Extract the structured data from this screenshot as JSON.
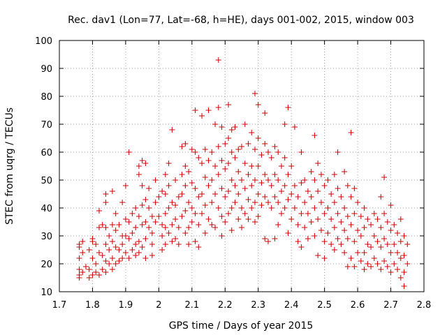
{
  "chart_data": {
    "type": "scatter",
    "title": "Rec. dav1 (Lon=77, Lat=-68, h=HE), days 001-002, 2015, window 003",
    "xlabel": "GPS time / Days of year 2015",
    "ylabel": "STEC from uqrg / TECUs",
    "xlim": [
      1.7,
      2.8
    ],
    "ylim": [
      10,
      100
    ],
    "x_ticks": [
      "1.7",
      "1.8",
      "1.9",
      "2",
      "2.1",
      "2.2",
      "2.3",
      "2.4",
      "2.5",
      "2.6",
      "2.7",
      "2.8"
    ],
    "y_ticks": [
      "10",
      "20",
      "30",
      "40",
      "50",
      "60",
      "70",
      "80",
      "90",
      "100"
    ],
    "grid": true,
    "marker": "+",
    "color": "#cc0000",
    "points": [
      [
        1.76,
        27
      ],
      [
        1.76,
        26
      ],
      [
        1.76,
        22
      ],
      [
        1.76,
        18
      ],
      [
        1.76,
        16
      ],
      [
        1.76,
        15
      ],
      [
        1.77,
        28
      ],
      [
        1.77,
        24
      ],
      [
        1.77,
        17
      ],
      [
        1.78,
        19
      ],
      [
        1.79,
        25
      ],
      [
        1.79,
        18
      ],
      [
        1.79,
        15
      ],
      [
        1.8,
        29
      ],
      [
        1.8,
        28
      ],
      [
        1.8,
        22
      ],
      [
        1.8,
        16
      ],
      [
        1.81,
        27
      ],
      [
        1.81,
        20
      ],
      [
        1.81,
        17
      ],
      [
        1.82,
        39
      ],
      [
        1.82,
        33
      ],
      [
        1.82,
        24
      ],
      [
        1.82,
        16
      ],
      [
        1.83,
        34
      ],
      [
        1.83,
        23
      ],
      [
        1.83,
        18
      ],
      [
        1.84,
        45
      ],
      [
        1.84,
        42
      ],
      [
        1.84,
        33
      ],
      [
        1.84,
        27
      ],
      [
        1.84,
        21
      ],
      [
        1.84,
        17
      ],
      [
        1.85,
        30
      ],
      [
        1.85,
        25
      ],
      [
        1.85,
        20
      ],
      [
        1.86,
        46
      ],
      [
        1.86,
        34
      ],
      [
        1.86,
        28
      ],
      [
        1.86,
        22
      ],
      [
        1.86,
        18
      ],
      [
        1.87,
        38
      ],
      [
        1.87,
        32
      ],
      [
        1.87,
        26
      ],
      [
        1.87,
        20
      ],
      [
        1.88,
        34
      ],
      [
        1.88,
        25
      ],
      [
        1.88,
        21
      ],
      [
        1.89,
        42
      ],
      [
        1.89,
        30
      ],
      [
        1.89,
        27
      ],
      [
        1.89,
        22
      ],
      [
        1.9,
        48
      ],
      [
        1.9,
        36
      ],
      [
        1.9,
        30
      ],
      [
        1.9,
        24
      ],
      [
        1.91,
        60
      ],
      [
        1.91,
        35
      ],
      [
        1.91,
        29
      ],
      [
        1.91,
        22
      ],
      [
        1.92,
        38
      ],
      [
        1.92,
        31
      ],
      [
        1.92,
        25
      ],
      [
        1.93,
        40
      ],
      [
        1.93,
        33
      ],
      [
        1.93,
        27
      ],
      [
        1.93,
        23
      ],
      [
        1.94,
        55
      ],
      [
        1.94,
        52
      ],
      [
        1.94,
        37
      ],
      [
        1.94,
        28
      ],
      [
        1.94,
        24
      ],
      [
        1.95,
        57
      ],
      [
        1.95,
        48
      ],
      [
        1.95,
        41
      ],
      [
        1.95,
        34
      ],
      [
        1.95,
        26
      ],
      [
        1.96,
        56
      ],
      [
        1.96,
        43
      ],
      [
        1.96,
        35
      ],
      [
        1.96,
        29
      ],
      [
        1.96,
        22
      ],
      [
        1.97,
        47
      ],
      [
        1.97,
        40
      ],
      [
        1.97,
        33
      ],
      [
        1.98,
        37
      ],
      [
        1.98,
        31
      ],
      [
        1.98,
        27
      ],
      [
        1.98,
        23
      ],
      [
        1.99,
        50
      ],
      [
        1.99,
        42
      ],
      [
        1.99,
        35
      ],
      [
        2.0,
        44
      ],
      [
        2.0,
        37
      ],
      [
        2.01,
        46
      ],
      [
        2.01,
        34
      ],
      [
        2.01,
        30
      ],
      [
        2.01,
        25
      ],
      [
        2.02,
        52
      ],
      [
        2.02,
        45
      ],
      [
        2.02,
        38
      ],
      [
        2.02,
        33
      ],
      [
        2.02,
        27
      ],
      [
        2.03,
        56
      ],
      [
        2.03,
        48
      ],
      [
        2.03,
        40
      ],
      [
        2.03,
        31
      ],
      [
        2.04,
        68
      ],
      [
        2.04,
        42
      ],
      [
        2.04,
        34
      ],
      [
        2.04,
        28
      ],
      [
        2.05,
        50
      ],
      [
        2.05,
        41
      ],
      [
        2.05,
        36
      ],
      [
        2.05,
        29
      ],
      [
        2.06,
        44
      ],
      [
        2.06,
        33
      ],
      [
        2.06,
        27
      ],
      [
        2.07,
        62
      ],
      [
        2.07,
        52
      ],
      [
        2.07,
        45
      ],
      [
        2.07,
        37
      ],
      [
        2.08,
        63
      ],
      [
        2.08,
        55
      ],
      [
        2.08,
        48
      ],
      [
        2.08,
        39
      ],
      [
        2.08,
        31
      ],
      [
        2.09,
        53
      ],
      [
        2.09,
        42
      ],
      [
        2.09,
        33
      ],
      [
        2.09,
        27
      ],
      [
        2.1,
        61
      ],
      [
        2.1,
        49
      ],
      [
        2.1,
        40
      ],
      [
        2.1,
        35
      ],
      [
        2.11,
        75
      ],
      [
        2.11,
        60
      ],
      [
        2.11,
        47
      ],
      [
        2.11,
        38
      ],
      [
        2.11,
        28
      ],
      [
        2.12,
        58
      ],
      [
        2.12,
        44
      ],
      [
        2.12,
        34
      ],
      [
        2.12,
        26
      ],
      [
        2.13,
        73
      ],
      [
        2.13,
        56
      ],
      [
        2.13,
        45
      ],
      [
        2.13,
        38
      ],
      [
        2.14,
        61
      ],
      [
        2.14,
        51
      ],
      [
        2.14,
        41
      ],
      [
        2.14,
        31
      ],
      [
        2.15,
        75
      ],
      [
        2.15,
        57
      ],
      [
        2.15,
        48
      ],
      [
        2.15,
        36
      ],
      [
        2.16,
        60
      ],
      [
        2.16,
        50
      ],
      [
        2.16,
        42
      ],
      [
        2.16,
        34
      ],
      [
        2.17,
        70
      ],
      [
        2.17,
        55
      ],
      [
        2.17,
        45
      ],
      [
        2.17,
        33
      ],
      [
        2.18,
        93
      ],
      [
        2.18,
        76
      ],
      [
        2.18,
        62
      ],
      [
        2.18,
        52
      ],
      [
        2.18,
        40
      ],
      [
        2.19,
        69
      ],
      [
        2.19,
        57
      ],
      [
        2.19,
        47
      ],
      [
        2.19,
        37
      ],
      [
        2.19,
        30
      ],
      [
        2.2,
        63
      ],
      [
        2.2,
        54
      ],
      [
        2.2,
        44
      ],
      [
        2.2,
        35
      ],
      [
        2.21,
        77
      ],
      [
        2.21,
        65
      ],
      [
        2.21,
        56
      ],
      [
        2.21,
        46
      ],
      [
        2.21,
        38
      ],
      [
        2.22,
        68
      ],
      [
        2.22,
        60
      ],
      [
        2.22,
        50
      ],
      [
        2.22,
        40
      ],
      [
        2.22,
        32
      ],
      [
        2.23,
        69
      ],
      [
        2.23,
        58
      ],
      [
        2.23,
        48
      ],
      [
        2.23,
        42
      ],
      [
        2.24,
        61
      ],
      [
        2.24,
        53
      ],
      [
        2.24,
        45
      ],
      [
        2.24,
        36
      ],
      [
        2.25,
        62
      ],
      [
        2.25,
        50
      ],
      [
        2.25,
        40
      ],
      [
        2.25,
        33
      ],
      [
        2.26,
        70
      ],
      [
        2.26,
        56
      ],
      [
        2.26,
        47
      ],
      [
        2.26,
        38
      ],
      [
        2.27,
        63
      ],
      [
        2.27,
        52
      ],
      [
        2.27,
        43
      ],
      [
        2.27,
        36
      ],
      [
        2.28,
        67
      ],
      [
        2.28,
        55
      ],
      [
        2.28,
        48
      ],
      [
        2.28,
        40
      ],
      [
        2.29,
        81
      ],
      [
        2.29,
        61
      ],
      [
        2.29,
        50
      ],
      [
        2.29,
        42
      ],
      [
        2.29,
        35
      ],
      [
        2.3,
        77
      ],
      [
        2.3,
        65
      ],
      [
        2.3,
        55
      ],
      [
        2.3,
        45
      ],
      [
        2.3,
        37
      ],
      [
        2.31,
        59
      ],
      [
        2.31,
        49
      ],
      [
        2.31,
        41
      ],
      [
        2.32,
        74
      ],
      [
        2.32,
        63
      ],
      [
        2.32,
        52
      ],
      [
        2.32,
        44
      ],
      [
        2.32,
        29
      ],
      [
        2.33,
        60
      ],
      [
        2.33,
        50
      ],
      [
        2.33,
        42
      ],
      [
        2.33,
        28
      ],
      [
        2.34,
        58
      ],
      [
        2.34,
        48
      ],
      [
        2.34,
        40
      ],
      [
        2.35,
        62
      ],
      [
        2.35,
        52
      ],
      [
        2.35,
        44
      ],
      [
        2.35,
        29
      ],
      [
        2.36,
        60
      ],
      [
        2.36,
        50
      ],
      [
        2.36,
        42
      ],
      [
        2.36,
        34
      ],
      [
        2.37,
        55
      ],
      [
        2.37,
        46
      ],
      [
        2.37,
        38
      ],
      [
        2.38,
        70
      ],
      [
        2.38,
        58
      ],
      [
        2.38,
        48
      ],
      [
        2.38,
        40
      ],
      [
        2.39,
        76
      ],
      [
        2.39,
        52
      ],
      [
        2.39,
        43
      ],
      [
        2.39,
        31
      ],
      [
        2.4,
        55
      ],
      [
        2.4,
        45
      ],
      [
        2.4,
        36
      ],
      [
        2.41,
        69
      ],
      [
        2.41,
        48
      ],
      [
        2.41,
        40
      ],
      [
        2.42,
        44
      ],
      [
        2.42,
        34
      ],
      [
        2.42,
        28
      ],
      [
        2.43,
        60
      ],
      [
        2.43,
        49
      ],
      [
        2.43,
        38
      ],
      [
        2.43,
        26
      ],
      [
        2.44,
        50
      ],
      [
        2.44,
        42
      ],
      [
        2.44,
        33
      ],
      [
        2.45,
        46
      ],
      [
        2.45,
        38
      ],
      [
        2.45,
        29
      ],
      [
        2.46,
        53
      ],
      [
        2.46,
        44
      ],
      [
        2.46,
        35
      ],
      [
        2.47,
        66
      ],
      [
        2.47,
        50
      ],
      [
        2.47,
        40
      ],
      [
        2.47,
        30
      ],
      [
        2.48,
        56
      ],
      [
        2.48,
        46
      ],
      [
        2.48,
        36
      ],
      [
        2.48,
        23
      ],
      [
        2.49,
        52
      ],
      [
        2.49,
        42
      ],
      [
        2.49,
        32
      ],
      [
        2.5,
        48
      ],
      [
        2.5,
        38
      ],
      [
        2.5,
        28
      ],
      [
        2.5,
        22
      ],
      [
        2.51,
        50
      ],
      [
        2.51,
        40
      ],
      [
        2.51,
        31
      ],
      [
        2.52,
        45
      ],
      [
        2.52,
        36
      ],
      [
        2.52,
        27
      ],
      [
        2.53,
        52
      ],
      [
        2.53,
        42
      ],
      [
        2.53,
        33
      ],
      [
        2.53,
        25
      ],
      [
        2.54,
        60
      ],
      [
        2.54,
        47
      ],
      [
        2.54,
        38
      ],
      [
        2.54,
        29
      ],
      [
        2.55,
        44
      ],
      [
        2.55,
        35
      ],
      [
        2.55,
        27
      ],
      [
        2.56,
        53
      ],
      [
        2.56,
        40
      ],
      [
        2.56,
        32
      ],
      [
        2.56,
        24
      ],
      [
        2.57,
        48
      ],
      [
        2.57,
        37
      ],
      [
        2.57,
        29
      ],
      [
        2.57,
        19
      ],
      [
        2.58,
        67
      ],
      [
        2.58,
        44
      ],
      [
        2.58,
        34
      ],
      [
        2.58,
        22
      ],
      [
        2.59,
        47
      ],
      [
        2.59,
        38
      ],
      [
        2.59,
        28
      ],
      [
        2.59,
        19
      ],
      [
        2.6,
        42
      ],
      [
        2.6,
        32
      ],
      [
        2.6,
        24
      ],
      [
        2.61,
        37
      ],
      [
        2.61,
        30
      ],
      [
        2.61,
        21
      ],
      [
        2.62,
        40
      ],
      [
        2.62,
        33
      ],
      [
        2.62,
        24
      ],
      [
        2.62,
        18
      ],
      [
        2.63,
        36
      ],
      [
        2.63,
        27
      ],
      [
        2.63,
        20
      ],
      [
        2.64,
        34
      ],
      [
        2.64,
        26
      ],
      [
        2.64,
        19
      ],
      [
        2.65,
        38
      ],
      [
        2.65,
        30
      ],
      [
        2.65,
        22
      ],
      [
        2.66,
        36
      ],
      [
        2.66,
        28
      ],
      [
        2.66,
        20
      ],
      [
        2.67,
        44
      ],
      [
        2.67,
        33
      ],
      [
        2.67,
        26
      ],
      [
        2.67,
        18
      ],
      [
        2.68,
        51
      ],
      [
        2.68,
        38
      ],
      [
        2.68,
        29
      ],
      [
        2.68,
        21
      ],
      [
        2.69,
        35
      ],
      [
        2.69,
        27
      ],
      [
        2.69,
        19
      ],
      [
        2.7,
        41
      ],
      [
        2.7,
        32
      ],
      [
        2.7,
        24
      ],
      [
        2.7,
        17
      ],
      [
        2.71,
        34
      ],
      [
        2.71,
        27
      ],
      [
        2.71,
        20
      ],
      [
        2.72,
        31
      ],
      [
        2.72,
        24
      ],
      [
        2.72,
        18
      ],
      [
        2.73,
        36
      ],
      [
        2.73,
        28
      ],
      [
        2.73,
        22
      ],
      [
        2.73,
        15
      ],
      [
        2.74,
        30
      ],
      [
        2.74,
        23
      ],
      [
        2.74,
        17
      ],
      [
        2.74,
        12
      ],
      [
        2.75,
        27
      ],
      [
        2.75,
        20
      ]
    ]
  }
}
